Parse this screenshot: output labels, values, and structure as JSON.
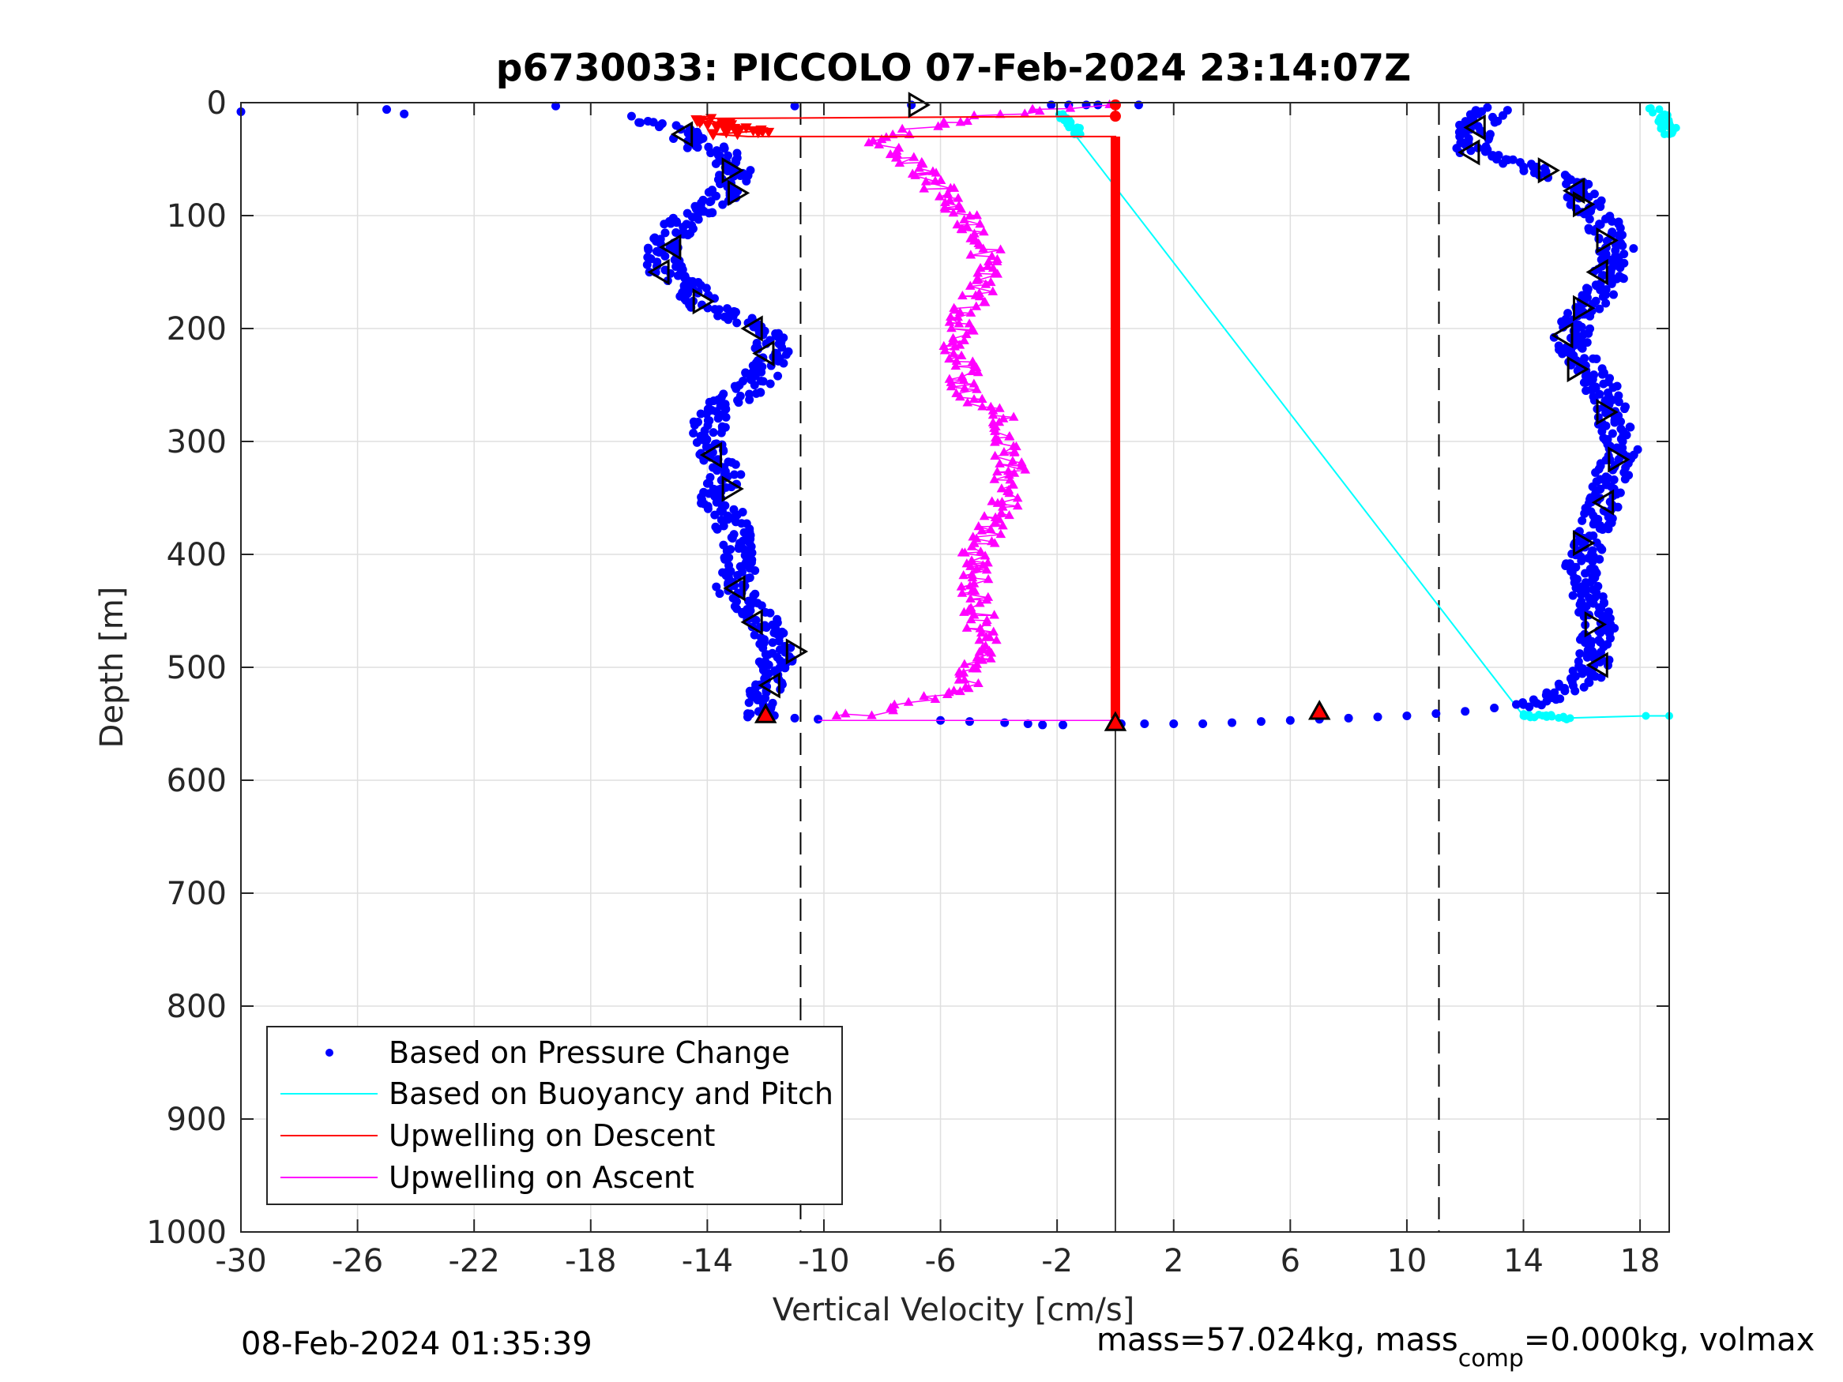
{
  "chart_data": {
    "type": "scatter",
    "title": "p6730033: PICCOLO 07-Feb-2024 23:14:07Z",
    "xlabel": "Vertical Velocity [cm/s]",
    "ylabel": "Depth [m]",
    "xlim": [
      -30,
      19
    ],
    "ylim": [
      0,
      1000
    ],
    "y_reversed": true,
    "grid": true,
    "xticks": [
      "-30",
      "-26",
      "-22",
      "-18",
      "-14",
      "-10",
      "-6",
      "-2",
      "2",
      "6",
      "10",
      "14",
      "18"
    ],
    "yticks": [
      "0",
      "100",
      "200",
      "300",
      "400",
      "500",
      "600",
      "700",
      "800",
      "900",
      "1000"
    ],
    "reference_lines": {
      "dashed_x": [
        -10.8,
        11.1
      ],
      "solid_x": [
        0
      ],
      "solid_x_depth_range": [
        545,
        1000
      ]
    },
    "legend": {
      "placement": "bottom-left",
      "entries": [
        "Based on Pressure Change",
        "Based on Buoyancy and Pitch",
        "Upwelling on Descent",
        "Upwelling on Ascent"
      ]
    },
    "colors": {
      "pressure": "#0000ff",
      "buoyancy": "#00ffff",
      "descent": "#ff0000",
      "ascent": "#ff00ff",
      "marker_outline": "#000000"
    },
    "series": [
      {
        "name": "Based on Pressure Change",
        "style": "dots",
        "descent_profile": [
          [
            -16.2,
            15
          ],
          [
            -14.8,
            25
          ],
          [
            -14.6,
            35
          ],
          [
            -13.4,
            45
          ],
          [
            -13.0,
            60
          ],
          [
            -13.4,
            80
          ],
          [
            -14.2,
            95
          ],
          [
            -15.0,
            110
          ],
          [
            -15.6,
            130
          ],
          [
            -15.4,
            150
          ],
          [
            -14.5,
            165
          ],
          [
            -14.2,
            180
          ],
          [
            -12.6,
            195
          ],
          [
            -11.8,
            210
          ],
          [
            -11.8,
            230
          ],
          [
            -12.4,
            250
          ],
          [
            -13.6,
            270
          ],
          [
            -14.0,
            290
          ],
          [
            -13.8,
            310
          ],
          [
            -13.4,
            330
          ],
          [
            -13.8,
            350
          ],
          [
            -13.2,
            370
          ],
          [
            -13.0,
            390
          ],
          [
            -12.8,
            410
          ],
          [
            -13.2,
            430
          ],
          [
            -12.4,
            450
          ],
          [
            -11.8,
            470
          ],
          [
            -11.6,
            490
          ],
          [
            -11.8,
            510
          ],
          [
            -12.0,
            525
          ],
          [
            -12.2,
            535
          ],
          [
            -12.0,
            545
          ]
        ],
        "ascent_profile": [
          [
            13.0,
            5
          ],
          [
            12.4,
            20
          ],
          [
            12.2,
            35
          ],
          [
            12.4,
            45
          ],
          [
            14.0,
            55
          ],
          [
            15.6,
            70
          ],
          [
            16.2,
            90
          ],
          [
            16.8,
            110
          ],
          [
            17.2,
            130
          ],
          [
            17.0,
            150
          ],
          [
            16.4,
            175
          ],
          [
            15.8,
            195
          ],
          [
            15.6,
            210
          ],
          [
            16.0,
            230
          ],
          [
            16.6,
            250
          ],
          [
            17.0,
            270
          ],
          [
            17.2,
            290
          ],
          [
            17.4,
            310
          ],
          [
            17.0,
            330
          ],
          [
            16.8,
            350
          ],
          [
            16.6,
            370
          ],
          [
            16.2,
            390
          ],
          [
            16.0,
            410
          ],
          [
            16.2,
            430
          ],
          [
            16.4,
            450
          ],
          [
            16.6,
            470
          ],
          [
            16.4,
            490
          ],
          [
            16.2,
            510
          ],
          [
            15.0,
            525
          ],
          [
            14.2,
            535
          ]
        ],
        "surface_points": [
          [
            -30.0,
            8
          ],
          [
            -25.0,
            6
          ],
          [
            -24.4,
            10
          ],
          [
            -19.2,
            3
          ],
          [
            -16.6,
            12
          ],
          [
            -11.0,
            3
          ],
          [
            -7.0,
            2
          ],
          [
            -2.2,
            2
          ],
          [
            -1.6,
            2
          ],
          [
            -1.0,
            2
          ],
          [
            -0.6,
            2
          ],
          [
            0.8,
            2
          ]
        ],
        "bottom_transit": [
          [
            -11.0,
            545
          ],
          [
            -10.2,
            546
          ],
          [
            -6.0,
            547
          ],
          [
            -5.0,
            548
          ],
          [
            -3.8,
            549
          ],
          [
            -3.0,
            550
          ],
          [
            -2.5,
            551
          ],
          [
            -1.8,
            551
          ],
          [
            0.2,
            550
          ],
          [
            1.0,
            550
          ],
          [
            2.0,
            550
          ],
          [
            3.0,
            550
          ],
          [
            4.0,
            549
          ],
          [
            5.0,
            548
          ],
          [
            6.0,
            547
          ],
          [
            7.0,
            546
          ],
          [
            8.0,
            545
          ],
          [
            9.0,
            544
          ],
          [
            10.0,
            543
          ],
          [
            11.0,
            541
          ],
          [
            12.0,
            539
          ],
          [
            13.0,
            536
          ],
          [
            14.0,
            533
          ],
          [
            14.8,
            530
          ]
        ]
      },
      {
        "name": "Based on Buoyancy and Pitch",
        "style": "line+dots",
        "points": [
          [
            -1.6,
            15
          ],
          [
            -1.4,
            28
          ],
          [
            14.0,
            543
          ],
          [
            15.4,
            545
          ],
          [
            18.2,
            543
          ],
          [
            19.0,
            543
          ]
        ],
        "surface_cluster": [
          [
            18.4,
            5
          ],
          [
            18.8,
            12
          ],
          [
            19.0,
            20
          ],
          [
            19.0,
            28
          ]
        ]
      },
      {
        "name": "Upwelling on Descent",
        "style": "line+triangles",
        "points": [
          [
            0,
            2
          ],
          [
            0,
            12
          ],
          [
            -14.2,
            14
          ],
          [
            -13.0,
            22
          ],
          [
            -12.2,
            25
          ],
          [
            -13.8,
            28
          ],
          [
            -12.6,
            30
          ],
          [
            0,
            30
          ],
          [
            0,
            545
          ]
        ],
        "bottom_marker": [
          -12.0,
          543
        ]
      },
      {
        "name": "Upwelling on Ascent",
        "style": "line+triangles",
        "profile": [
          [
            -9.2,
            545
          ],
          [
            -8.0,
            540
          ],
          [
            -6.5,
            530
          ],
          [
            -5.0,
            520
          ],
          [
            -4.8,
            500
          ],
          [
            -4.6,
            480
          ],
          [
            -4.6,
            460
          ],
          [
            -4.8,
            440
          ],
          [
            -4.8,
            420
          ],
          [
            -4.8,
            400
          ],
          [
            -4.4,
            380
          ],
          [
            -3.8,
            360
          ],
          [
            -3.6,
            340
          ],
          [
            -3.6,
            320
          ],
          [
            -3.6,
            300
          ],
          [
            -3.8,
            280
          ],
          [
            -5.0,
            260
          ],
          [
            -5.2,
            240
          ],
          [
            -5.4,
            220
          ],
          [
            -5.2,
            200
          ],
          [
            -5.0,
            180
          ],
          [
            -4.6,
            160
          ],
          [
            -4.4,
            140
          ],
          [
            -4.6,
            120
          ],
          [
            -5.2,
            100
          ],
          [
            -6.0,
            80
          ],
          [
            -6.6,
            60
          ],
          [
            -7.4,
            45
          ],
          [
            -8.2,
            35
          ],
          [
            -7.0,
            25
          ],
          [
            -5.0,
            15
          ],
          [
            -2.4,
            5
          ],
          [
            -0.2,
            2
          ]
        ],
        "bottom_marker": [
          7.0,
          540
        ]
      }
    ],
    "direction_markers": [
      [
        -6.8,
        2,
        "right"
      ],
      [
        -14.8,
        28,
        "left"
      ],
      [
        -13.2,
        60,
        "right"
      ],
      [
        -13.0,
        80,
        "right"
      ],
      [
        -15.2,
        128,
        "left"
      ],
      [
        -15.6,
        150,
        "left"
      ],
      [
        -14.2,
        176,
        "right"
      ],
      [
        -12.4,
        200,
        "left"
      ],
      [
        -12.0,
        222,
        "left"
      ],
      [
        -13.8,
        312,
        "left"
      ],
      [
        -13.2,
        342,
        "right"
      ],
      [
        -13.0,
        430,
        "left"
      ],
      [
        -12.4,
        460,
        "left"
      ],
      [
        -11.0,
        486,
        "right"
      ],
      [
        -11.8,
        516,
        "left"
      ],
      [
        12.4,
        22,
        "left"
      ],
      [
        12.2,
        44,
        "left"
      ],
      [
        14.8,
        60,
        "right"
      ],
      [
        15.8,
        78,
        "left"
      ],
      [
        16.0,
        90,
        "right"
      ],
      [
        16.8,
        122,
        "right"
      ],
      [
        16.6,
        150,
        "left"
      ],
      [
        16.0,
        182,
        "right"
      ],
      [
        15.4,
        206,
        "left"
      ],
      [
        15.8,
        236,
        "right"
      ],
      [
        16.8,
        274,
        "right"
      ],
      [
        17.2,
        316,
        "right"
      ],
      [
        16.8,
        354,
        "left"
      ],
      [
        16.0,
        390,
        "right"
      ],
      [
        16.4,
        462,
        "right"
      ],
      [
        16.6,
        498,
        "left"
      ]
    ],
    "bottom_black_marker": [
      0,
      550
    ]
  },
  "footer": {
    "timestamp": "08-Feb-2024 01:35:39",
    "mass_text": "mass=57.024kg, mass",
    "mass_sub": "comp",
    "mass_tail": "=0.000kg, volmax"
  }
}
